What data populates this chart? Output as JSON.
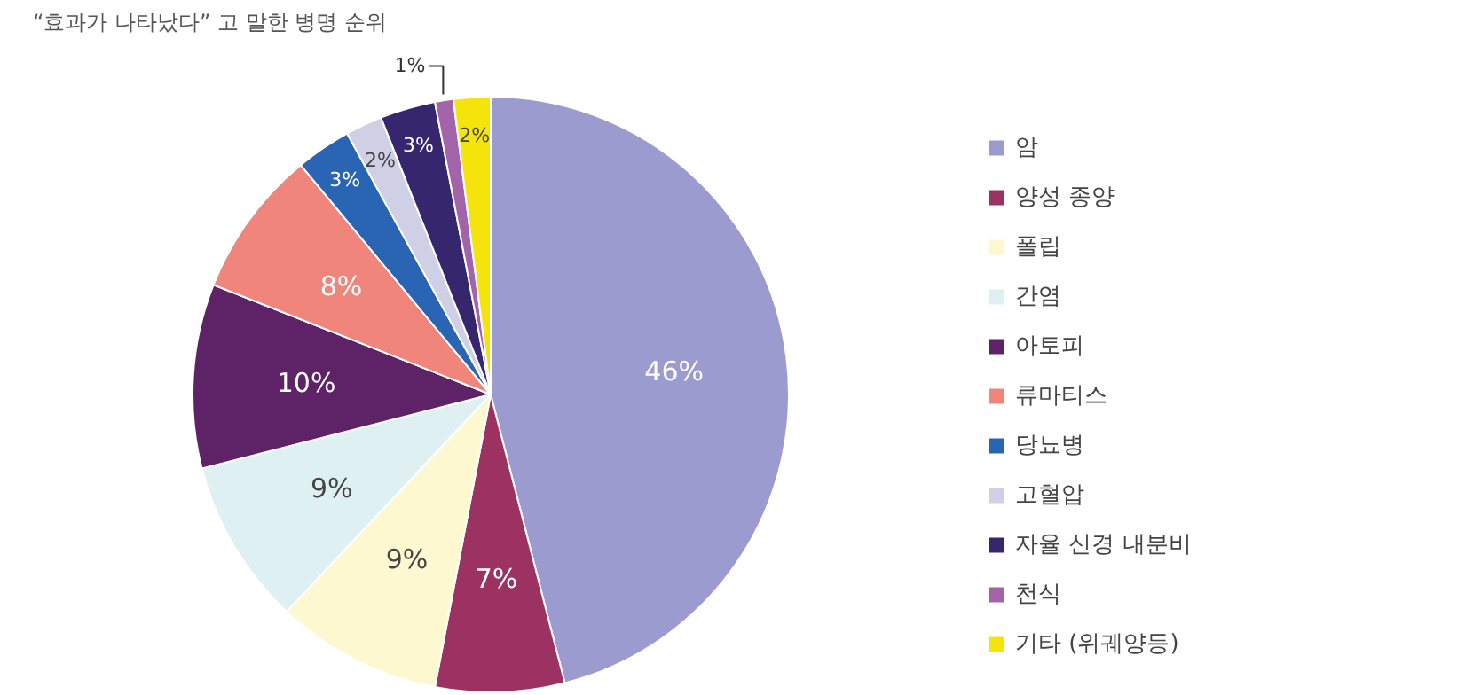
{
  "chart_data": {
    "type": "pie",
    "title": "“효과가 나타났다” 고 말한 병명 순위",
    "categories": [
      "암",
      "양성 종양",
      "폴립",
      "간염",
      "아토피",
      "류마티스",
      "당뇨병",
      "고혈압",
      "자율 신경 내분비",
      "천식",
      "기타 (위궤양등)"
    ],
    "values": [
      46,
      7,
      9,
      9,
      10,
      8,
      3,
      2,
      3,
      1,
      2
    ],
    "colors": [
      "#9b9bcf",
      "#9b3262",
      "#fdf8cf",
      "#dff0f3",
      "#5e2266",
      "#f0857c",
      "#2a65b3",
      "#cfcfe6",
      "#35266d",
      "#a263a8",
      "#f5e40c"
    ],
    "value_labels": [
      "46%",
      "7%",
      "9%",
      "9%",
      "10%",
      "8%",
      "3%",
      "2%",
      "3%",
      "1%",
      "2%"
    ],
    "legend": "right"
  }
}
